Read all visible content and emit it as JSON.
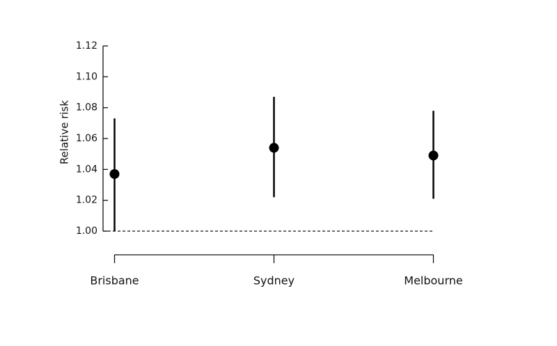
{
  "chart_data": {
    "type": "errorbar",
    "y_label": "Relative risk",
    "categories": [
      "Brisbane",
      "Sydney",
      "Melbourne"
    ],
    "series": [
      {
        "color": "#000000",
        "values": [
          1.037,
          1.054,
          1.049
        ],
        "lower": [
          1.0,
          1.022,
          1.021
        ],
        "upper": [
          1.073,
          1.087,
          1.078
        ]
      }
    ],
    "ylim": [
      1.0,
      1.12
    ],
    "yticks": [
      {
        "value": 1.0,
        "label": "1.00"
      },
      1.02,
      1.04,
      1.06,
      1.08,
      {
        "value": 1.1,
        "label": "1.10"
      },
      1.12
    ],
    "reference_line": 1.0
  }
}
